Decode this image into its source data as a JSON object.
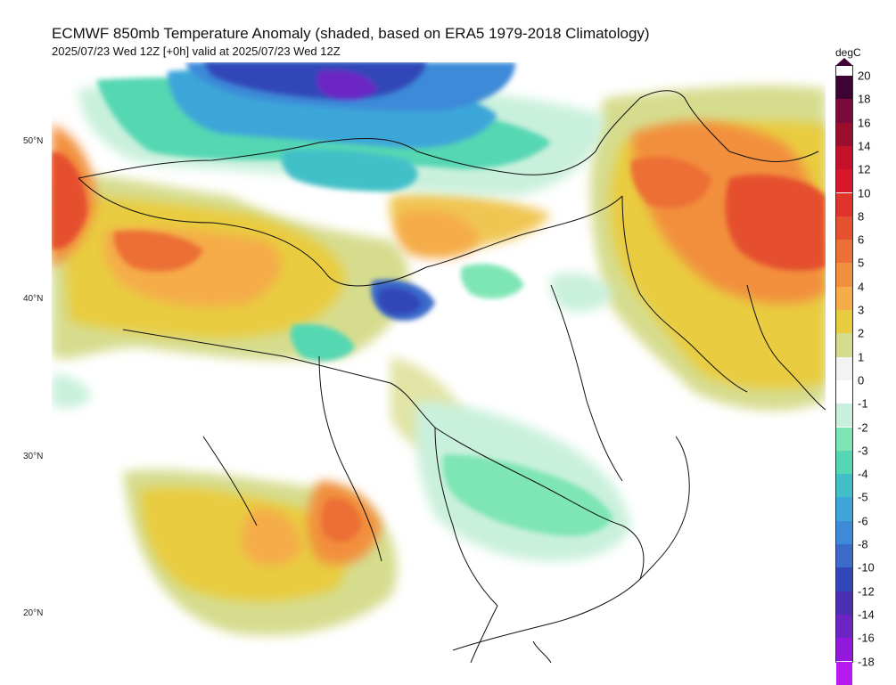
{
  "header": {
    "title": "ECMWF 850mb Temperature Anomaly (shaded, based on ERA5 1979-2018 Climatology)",
    "subtitle": "2025/07/23 Wed 12Z [+0h] valid at 2025/07/23 Wed 12Z"
  },
  "map": {
    "latitude_labels": [
      "50°N",
      "40°N",
      "30°N",
      "20°N"
    ],
    "region": "East Asia / China"
  },
  "colorbar": {
    "unit": "degC",
    "ticks": [
      "20",
      "18",
      "16",
      "14",
      "12",
      "10",
      "8",
      "6",
      "5",
      "4",
      "3",
      "2",
      "1",
      "0",
      "-1",
      "-2",
      "-3",
      "-4",
      "-5",
      "-6",
      "-8",
      "-10",
      "-12",
      "-14",
      "-16",
      "-18"
    ],
    "colors": {
      "20": "#3d0433",
      "18": "#7c0a3c",
      "16": "#9b0d2c",
      "14": "#c4102a",
      "12": "#d6172b",
      "10": "#e0332c",
      "8": "#e5502f",
      "6": "#ec6f35",
      "5": "#f28f3e",
      "4": "#f5ac49",
      "3": "#e9cc3f",
      "2": "#d6dc8e",
      "1": "#f3f3f3",
      "0": "#ffffff",
      "-1": "#c9f0dc",
      "-2": "#7ee5b4",
      "-3": "#54d7b2",
      "-4": "#43c0c7",
      "-5": "#3ea6d9",
      "-6": "#3d8ad8",
      "-8": "#3b6ac9",
      "-10": "#3346b7",
      "-12": "#4a2fb0",
      "-14": "#6c25c4",
      "-16": "#9219dc",
      "-18": "#b51af0"
    }
  }
}
